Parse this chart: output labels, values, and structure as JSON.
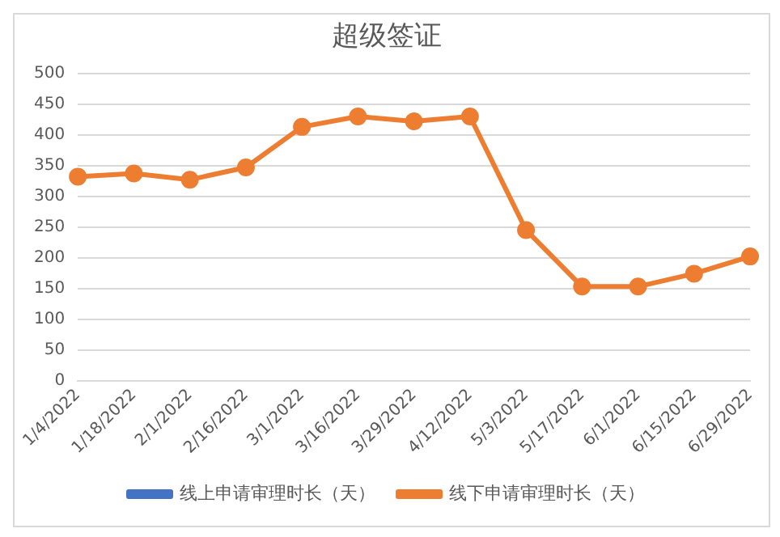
{
  "chart_data": {
    "type": "line",
    "title": "超级签证",
    "categories": [
      "1/4/2022",
      "1/18/2022",
      "2/1/2022",
      "2/16/2022",
      "3/1/2022",
      "3/16/2022",
      "3/29/2022",
      "4/12/2022",
      "5/3/2022",
      "5/17/2022",
      "6/1/2022",
      "6/15/2022",
      "6/29/2022"
    ],
    "series": [
      {
        "name": "线上申请审理时长（天）",
        "color": "#4472c4",
        "values": [
          null,
          null,
          null,
          null,
          null,
          null,
          null,
          null,
          null,
          null,
          null,
          null,
          null
        ]
      },
      {
        "name": "线下申请审理时长（天）",
        "color": "#ed7d31",
        "values": [
          332,
          337,
          327,
          347,
          413,
          430,
          422,
          430,
          245,
          153,
          153,
          174,
          202
        ]
      }
    ],
    "ylim": [
      0,
      500
    ],
    "yticks": [
      0,
      50,
      100,
      150,
      200,
      250,
      300,
      350,
      400,
      450,
      500
    ],
    "grid": "y",
    "legend": "bottom",
    "marker": "circle",
    "line_style": "solid"
  }
}
